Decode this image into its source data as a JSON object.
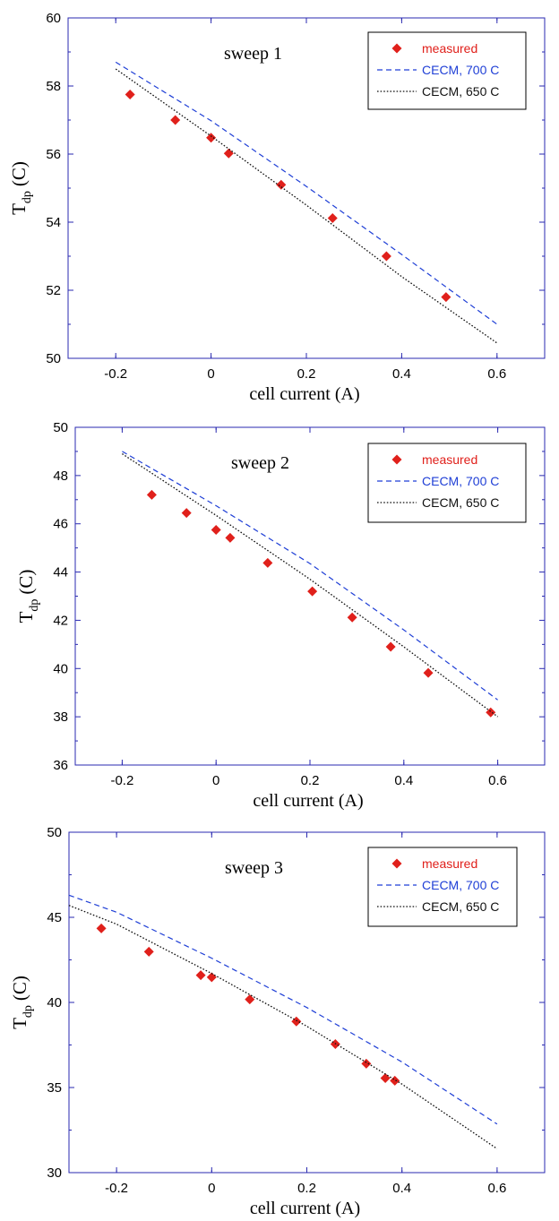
{
  "chart_data": [
    {
      "type": "scatter",
      "title": "sweep 1",
      "xlabel": "cell current (A)",
      "ylabel_main": "T",
      "ylabel_sub": "dp",
      "ylabel_unit": "(C)",
      "xlim": [
        -0.3,
        0.7
      ],
      "ylim": [
        50,
        60
      ],
      "xticks": [
        -0.2,
        0,
        0.2,
        0.4,
        0.6
      ],
      "xtick_labels": [
        "-0.2",
        "0",
        "0.2",
        "0.4",
        "0.6"
      ],
      "yticks": [
        50,
        52,
        54,
        56,
        58,
        60
      ],
      "ytick_labels": [
        "50",
        "52",
        "54",
        "56",
        "58",
        "60"
      ],
      "legend_position": "top-right",
      "grid": false,
      "series": [
        {
          "name": "measured",
          "kind": "markers",
          "color": "#e0201b",
          "x": [
            -0.17,
            -0.075,
            0.0,
            0.037,
            0.147,
            0.255,
            0.368,
            0.493
          ],
          "y": [
            57.75,
            57.0,
            56.48,
            56.02,
            55.1,
            54.12,
            53.0,
            51.8
          ]
        },
        {
          "name": "CECM, 700 C",
          "kind": "dashed",
          "color": "#1f3fd6",
          "x": [
            -0.2,
            0.0,
            0.2,
            0.4,
            0.6
          ],
          "y": [
            58.7,
            56.98,
            55.05,
            53.05,
            51.0
          ]
        },
        {
          "name": "CECM, 650 C",
          "kind": "dotted",
          "color": "#111111",
          "x": [
            -0.2,
            0.0,
            0.2,
            0.4,
            0.6
          ],
          "y": [
            58.5,
            56.53,
            54.5,
            52.4,
            50.45
          ]
        }
      ]
    },
    {
      "type": "scatter",
      "title": "sweep 2",
      "xlabel": "cell current (A)",
      "ylabel_main": "T",
      "ylabel_sub": "dp",
      "ylabel_unit": "(C)",
      "xlim": [
        -0.3,
        0.7
      ],
      "ylim": [
        36,
        50
      ],
      "xticks": [
        -0.2,
        0,
        0.2,
        0.4,
        0.6
      ],
      "xtick_labels": [
        "-0.2",
        "0",
        "0.2",
        "0.4",
        "0.6"
      ],
      "yticks": [
        36,
        38,
        40,
        42,
        44,
        46,
        48,
        50
      ],
      "ytick_labels": [
        "36",
        "38",
        "40",
        "42",
        "44",
        "46",
        "48",
        "50"
      ],
      "legend_position": "top-right",
      "grid": false,
      "series": [
        {
          "name": "measured",
          "kind": "markers",
          "color": "#e0201b",
          "x": [
            -0.137,
            -0.063,
            0.0,
            0.03,
            0.11,
            0.205,
            0.29,
            0.372,
            0.452,
            0.585
          ],
          "y": [
            47.2,
            46.45,
            45.75,
            45.42,
            44.38,
            43.2,
            42.12,
            40.9,
            39.82,
            38.18
          ]
        },
        {
          "name": "CECM, 700 C",
          "kind": "dashed",
          "color": "#1f3fd6",
          "x": [
            -0.2,
            0.0,
            0.2,
            0.4,
            0.6
          ],
          "y": [
            49.0,
            46.75,
            44.35,
            41.6,
            38.7
          ]
        },
        {
          "name": "CECM, 650 C",
          "kind": "dotted",
          "color": "#111111",
          "x": [
            -0.2,
            0.0,
            0.2,
            0.4,
            0.6
          ],
          "y": [
            48.9,
            46.35,
            43.7,
            40.9,
            38.0
          ]
        }
      ]
    },
    {
      "type": "scatter",
      "title": "sweep 3",
      "xlabel": "cell current (A)",
      "ylabel_main": "T",
      "ylabel_sub": "dp",
      "ylabel_unit": "(C)",
      "xlim": [
        -0.3,
        0.7
      ],
      "ylim": [
        30,
        50
      ],
      "xticks": [
        -0.2,
        0,
        0.2,
        0.4,
        0.6
      ],
      "xtick_labels": [
        "-0.2",
        "0",
        "0.2",
        "0.4",
        "0.6"
      ],
      "yticks": [
        30,
        35,
        40,
        45,
        50
      ],
      "ytick_labels": [
        "30",
        "35",
        "40",
        "45",
        "50"
      ],
      "legend_position": "top-right",
      "grid": false,
      "series": [
        {
          "name": "measured",
          "kind": "markers",
          "color": "#e0201b",
          "x": [
            -0.232,
            -0.132,
            -0.023,
            0.0,
            0.08,
            0.178,
            0.26,
            0.325,
            0.365,
            0.385
          ],
          "y": [
            44.35,
            42.98,
            41.6,
            41.48,
            40.18,
            38.88,
            37.55,
            36.4,
            35.55,
            35.4
          ]
        },
        {
          "name": "CECM, 700 C",
          "kind": "dashed",
          "color": "#1f3fd6",
          "x": [
            -0.3,
            -0.2,
            0.0,
            0.2,
            0.4,
            0.6
          ],
          "y": [
            46.3,
            45.3,
            42.6,
            39.7,
            36.5,
            32.85
          ]
        },
        {
          "name": "CECM, 650 C",
          "kind": "dotted",
          "color": "#111111",
          "x": [
            -0.3,
            -0.2,
            0.0,
            0.2,
            0.4,
            0.6
          ],
          "y": [
            45.7,
            44.6,
            41.7,
            38.6,
            35.2,
            31.4
          ]
        }
      ]
    }
  ]
}
